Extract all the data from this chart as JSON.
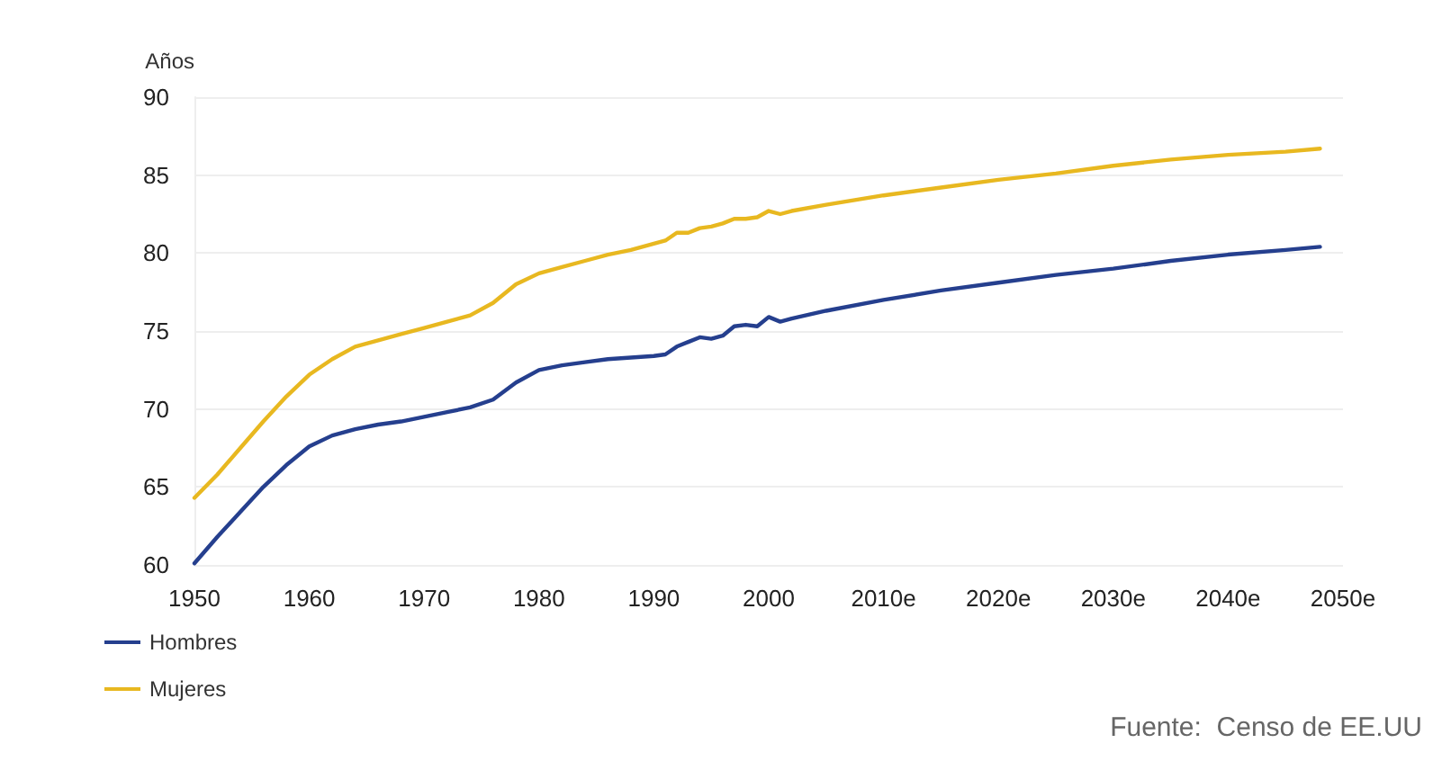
{
  "chart_data": {
    "type": "line",
    "ylabel": "Años",
    "annotations": [
      "Fuente:  Censo de EE.UU"
    ],
    "x": [
      1950,
      1952,
      1954,
      1956,
      1958,
      1960,
      1962,
      1964,
      1966,
      1968,
      1970,
      1972,
      1974,
      1976,
      1978,
      1980,
      1982,
      1984,
      1986,
      1988,
      1990,
      1991,
      1992,
      1993,
      1994,
      1995,
      1996,
      1997,
      1998,
      1999,
      2000,
      2001,
      2002,
      2005,
      2010,
      2015,
      2020,
      2025,
      2030,
      2035,
      2040,
      2045,
      2048
    ],
    "series": [
      {
        "name": "Hombres",
        "color": "#253f8e",
        "values": [
          60.1,
          61.8,
          63.4,
          65.0,
          66.4,
          67.6,
          68.3,
          68.7,
          69.0,
          69.2,
          69.5,
          69.8,
          70.1,
          70.6,
          71.7,
          72.5,
          72.8,
          73.0,
          73.2,
          73.3,
          73.4,
          73.5,
          74.0,
          74.3,
          74.6,
          74.5,
          74.7,
          75.3,
          75.4,
          75.3,
          75.9,
          75.6,
          75.8,
          76.3,
          77.0,
          77.6,
          78.1,
          78.6,
          79.0,
          79.5,
          79.9,
          80.2,
          80.4
        ]
      },
      {
        "name": "Mujeres",
        "color": "#e8b820",
        "values": [
          64.3,
          65.8,
          67.5,
          69.2,
          70.8,
          72.2,
          73.2,
          74.0,
          74.4,
          74.8,
          75.2,
          75.6,
          76.0,
          76.8,
          78.0,
          78.7,
          79.1,
          79.5,
          79.9,
          80.2,
          80.6,
          80.8,
          81.3,
          81.3,
          81.6,
          81.7,
          81.9,
          82.2,
          82.2,
          82.3,
          82.7,
          82.5,
          82.7,
          83.1,
          83.7,
          84.2,
          84.7,
          85.1,
          85.6,
          86.0,
          86.3,
          86.5,
          86.7
        ]
      }
    ],
    "xlim": [
      1950,
      2050
    ],
    "xticks": [
      1950,
      1960,
      1970,
      1980,
      1990,
      2000,
      {
        "value": 2010,
        "label": "2010e"
      },
      {
        "value": 2020,
        "label": "2020e"
      },
      {
        "value": 2030,
        "label": "2030e"
      },
      {
        "value": 2040,
        "label": "2040e"
      },
      {
        "value": 2050,
        "label": "2050e"
      }
    ],
    "ylim": [
      60,
      90
    ],
    "yticks": [
      60,
      65,
      70,
      75,
      80,
      85,
      90
    ],
    "grid": "y",
    "legend": "bottom left",
    "marker": "none",
    "line_style": "solid"
  }
}
